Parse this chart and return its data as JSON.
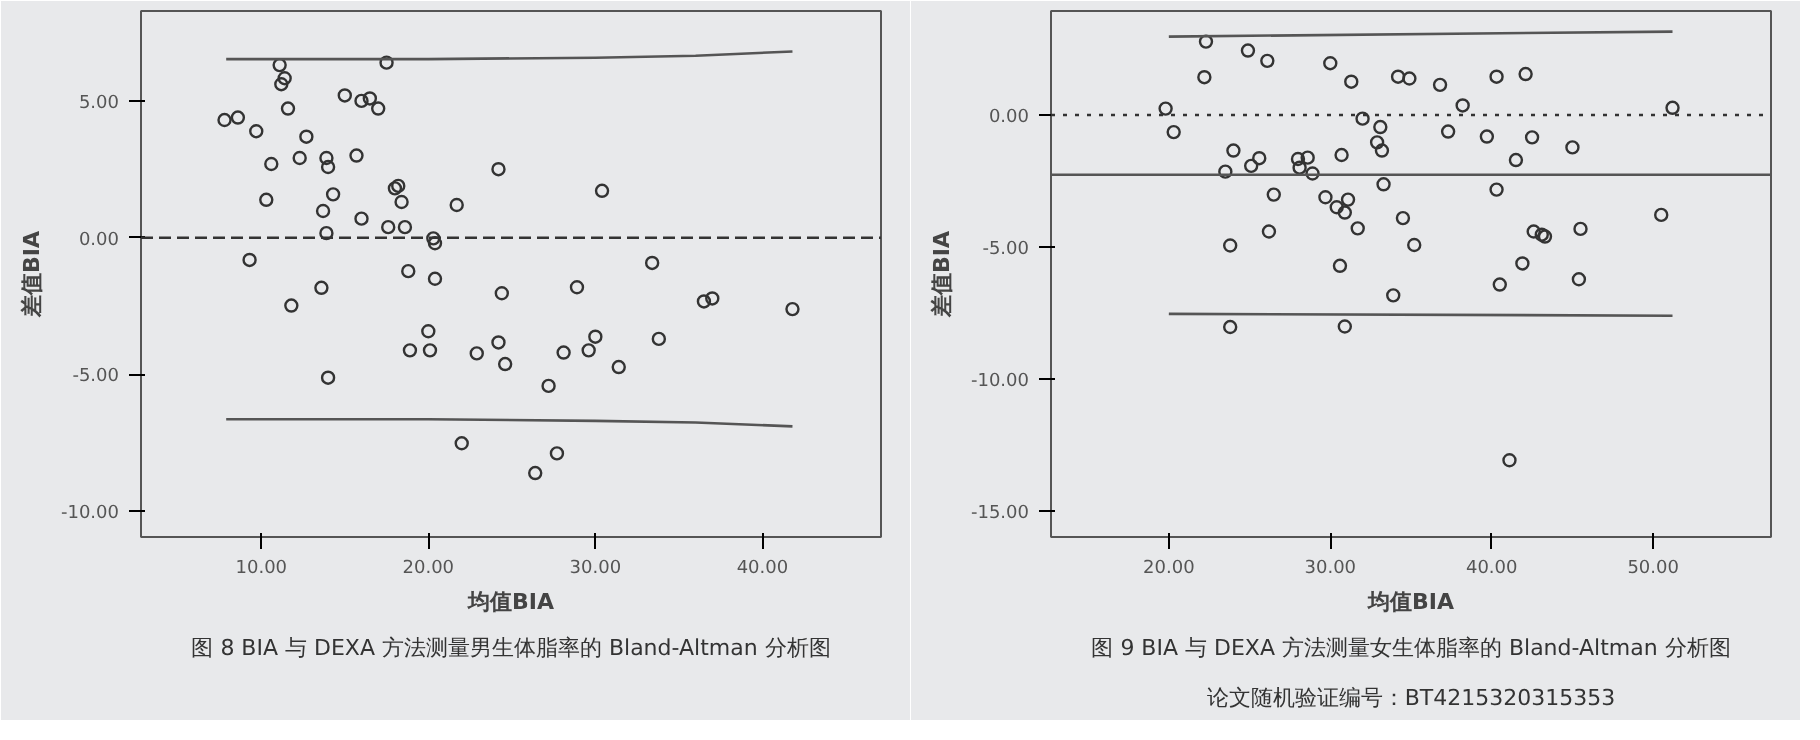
{
  "chart_data": [
    {
      "type": "scatter",
      "xlabel": "均值BIA",
      "ylabel": "差值BIA",
      "grid": false,
      "xlim": [
        2.8,
        47.1
      ],
      "ylim": [
        -10.95,
        8.3
      ],
      "xticks": [
        {
          "value": 10,
          "label": "10.00"
        },
        {
          "value": 20,
          "label": "20.00"
        },
        {
          "value": 30,
          "label": "30.00"
        },
        {
          "value": 40,
          "label": "40.00"
        }
      ],
      "yticks": [
        {
          "value": 5,
          "label": "5.00"
        },
        {
          "value": 0,
          "label": "0.00"
        },
        {
          "value": -5,
          "label": "-5.00"
        },
        {
          "value": -10,
          "label": "-10.00"
        }
      ],
      "ref_lines": [
        {
          "axis": "y",
          "value": 0,
          "color": "#333333",
          "line_style": "dashed"
        }
      ],
      "annotations": [
        "图 8 BIA 与 DEXA 方法测量男生体脂率的 Bland-Altman 分析图"
      ],
      "series": [
        {
          "color": "#333333",
          "marker": "circle",
          "x": [
            7.8,
            8.6,
            9.7,
            11.1,
            11.4,
            11.2,
            11.6,
            12.7,
            10.6,
            12.3,
            13.9,
            14.0,
            15.7,
            15.0,
            16.0,
            16.5,
            17.0,
            17.5,
            10.3,
            13.7,
            14.3,
            16.0,
            13.9,
            17.6,
            18.6,
            18.0,
            18.2,
            18.4,
            21.7,
            20.3,
            20.4,
            9.3,
            13.6,
            11.8,
            18.8,
            20.4,
            20.0,
            18.9,
            20.1,
            14.0,
            22.0,
            24.2,
            30.4,
            33.4,
            24.4,
            28.9,
            36.5,
            37.0,
            41.8,
            22.9,
            24.2,
            24.6,
            28.1,
            29.6,
            30.0,
            33.8,
            31.4,
            27.2,
            27.7,
            26.4
          ],
          "values": [
            4.31,
            4.4,
            3.9,
            6.32,
            5.84,
            5.62,
            4.73,
            3.7,
            2.7,
            2.92,
            2.92,
            2.59,
            3.01,
            5.21,
            5.01,
            5.1,
            4.73,
            6.41,
            1.39,
            0.98,
            1.59,
            0.7,
            0.17,
            0.39,
            0.39,
            1.81,
            1.9,
            1.31,
            1.2,
            -0.02,
            -0.2,
            -0.81,
            -1.83,
            -2.48,
            -1.22,
            -1.5,
            -3.42,
            -4.12,
            -4.12,
            -5.12,
            -7.52,
            2.51,
            1.72,
            -0.92,
            -2.03,
            -1.81,
            -2.33,
            -2.22,
            -2.61,
            -4.23,
            -3.83,
            -4.62,
            -4.2,
            -4.12,
            -3.62,
            -3.7,
            -4.73,
            -5.42,
            -7.89,
            -8.61
          ]
        },
        {
          "type": "line",
          "color": "#555555",
          "x": [
            7.9,
            20,
            30,
            36,
            41.8
          ],
          "values": [
            6.54,
            6.54,
            6.59,
            6.66,
            6.82
          ]
        },
        {
          "type": "line",
          "color": "#555555",
          "x": [
            7.9,
            20,
            30,
            36,
            41.8
          ],
          "values": [
            -6.64,
            -6.64,
            -6.7,
            -6.76,
            -6.9
          ]
        }
      ]
    },
    {
      "type": "scatter",
      "xlabel": "均值BIA",
      "ylabel": "差值BIA",
      "grid": false,
      "xlim": [
        12.7,
        57.3
      ],
      "ylim": [
        -16.0,
        3.94
      ],
      "xticks": [
        {
          "value": 20,
          "label": "20.00"
        },
        {
          "value": 30,
          "label": "30.00"
        },
        {
          "value": 40,
          "label": "40.00"
        },
        {
          "value": 50,
          "label": "50.00"
        }
      ],
      "yticks": [
        {
          "value": 0,
          "label": "0.00"
        },
        {
          "value": -5,
          "label": "-5.00"
        },
        {
          "value": -10,
          "label": "-10.00"
        },
        {
          "value": -15,
          "label": "-15.00"
        }
      ],
      "ref_lines": [
        {
          "axis": "y",
          "value": 0,
          "color": "#333333",
          "line_style": "dotted"
        },
        {
          "axis": "y",
          "value": -2.27,
          "color": "#555555",
          "line_style": "solid"
        }
      ],
      "annotations": [
        "图 9 BIA 与 DEXA 方法测量女生体脂率的 Bland-Altman 分析图",
        "论文随机验证编号：BT4215320315353"
      ],
      "series": [
        {
          "color": "#333333",
          "marker": "circle",
          "x": [
            19.8,
            20.3,
            22.3,
            22.2,
            24.9,
            26.1,
            30.0,
            31.3,
            32.0,
            24.0,
            25.6,
            25.1,
            23.5,
            28.0,
            28.6,
            28.1,
            28.9,
            30.7,
            26.5,
            29.7,
            31.1,
            30.4,
            30.9,
            31.7,
            26.2,
            23.8,
            30.6,
            23.8,
            30.9,
            33.1,
            32.9,
            33.2,
            34.2,
            34.9,
            36.8,
            38.2,
            37.3,
            39.7,
            40.3,
            42.1,
            42.5,
            41.5,
            45.0,
            51.2,
            40.3,
            33.3,
            34.5,
            35.2,
            33.9,
            42.6,
            43.1,
            43.3,
            45.5,
            50.5,
            41.9,
            40.5,
            45.4,
            41.1
          ],
          "values": [
            0.24,
            -0.65,
            2.78,
            1.43,
            2.44,
            2.05,
            1.96,
            1.26,
            -0.14,
            -1.35,
            -1.64,
            -1.93,
            -2.15,
            -1.67,
            -1.62,
            -2.0,
            -2.22,
            -1.52,
            -3.02,
            -3.12,
            -3.21,
            -3.5,
            -3.7,
            -4.3,
            -4.42,
            -4.95,
            -5.72,
            -8.04,
            -8.02,
            -0.46,
            -1.04,
            -1.35,
            1.45,
            1.38,
            1.14,
            0.36,
            -0.63,
            -0.82,
            1.45,
            1.55,
            -0.85,
            -1.71,
            -1.23,
            0.27,
            -2.83,
            -2.63,
            -3.91,
            -4.93,
            -6.84,
            -4.42,
            -4.54,
            -4.61,
            -4.32,
            -3.79,
            -5.63,
            -6.43,
            -6.23,
            -13.09
          ]
        },
        {
          "type": "line",
          "color": "#555555",
          "x": [
            20,
            51.2
          ],
          "values": [
            2.97,
            3.16
          ]
        },
        {
          "type": "line",
          "color": "#555555",
          "x": [
            20,
            51.2
          ],
          "values": [
            -7.54,
            -7.61
          ]
        }
      ]
    }
  ]
}
